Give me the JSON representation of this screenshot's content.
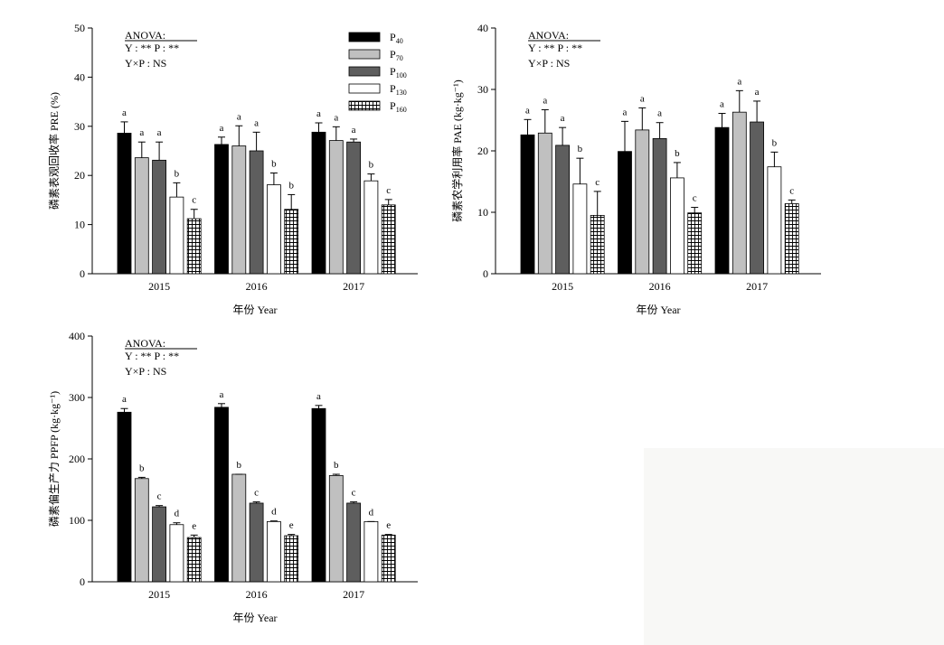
{
  "colors": {
    "P40": "#000000",
    "P70": "#c0c0c0",
    "P100": "#5e5e5e",
    "P130": "#ffffff",
    "P160": "hatch-grid"
  },
  "legend": [
    {
      "base": "P",
      "sub": "40",
      "key": "P40"
    },
    {
      "base": "P",
      "sub": "70",
      "key": "P70"
    },
    {
      "base": "P",
      "sub": "100",
      "key": "P100"
    },
    {
      "base": "P",
      "sub": "130",
      "key": "P130"
    },
    {
      "base": "P",
      "sub": "160",
      "key": "P160"
    }
  ],
  "chart_data": [
    {
      "type": "bar",
      "ylabel": "磷素表观回收率 PRE (%)",
      "xlabel": "年份 Year",
      "categories": [
        "2015",
        "2016",
        "2017"
      ],
      "ylim": [
        0,
        50
      ],
      "yticks": [
        0,
        10,
        20,
        30,
        40,
        50
      ],
      "anova": {
        "title": "ANOVA:",
        "line1": "Y : ** P : **",
        "line2": "Y×P : NS"
      },
      "series": [
        {
          "name": "P40",
          "values": [
            28.6,
            26.3,
            28.8
          ],
          "errors": [
            2.3,
            1.5,
            1.9
          ],
          "letters": [
            "a",
            "a",
            "a"
          ]
        },
        {
          "name": "P70",
          "values": [
            23.6,
            26.0,
            27.1
          ],
          "errors": [
            3.2,
            4.1,
            2.8
          ],
          "letters": [
            "a",
            "a",
            "a"
          ]
        },
        {
          "name": "P100",
          "values": [
            23.1,
            25.0,
            26.8
          ],
          "errors": [
            3.7,
            3.8,
            0.6
          ],
          "letters": [
            "a",
            "a",
            "a"
          ]
        },
        {
          "name": "P130",
          "values": [
            15.6,
            18.1,
            18.9
          ],
          "errors": [
            2.9,
            2.4,
            1.4
          ],
          "letters": [
            "b",
            "b",
            "b"
          ]
        },
        {
          "name": "P160",
          "values": [
            11.2,
            13.1,
            14.0
          ],
          "errors": [
            1.9,
            3.0,
            1.1
          ],
          "letters": [
            "c",
            "b",
            "c"
          ]
        }
      ]
    },
    {
      "type": "bar",
      "ylabel": "磷素农学利用率 PAE (kg·kg⁻¹)",
      "xlabel": "年份 Year",
      "categories": [
        "2015",
        "2016",
        "2017"
      ],
      "ylim": [
        0,
        40
      ],
      "yticks": [
        0,
        10,
        20,
        30,
        40
      ],
      "anova": {
        "title": "ANOVA:",
        "line1": "Y : ** P : **",
        "line2": "Y×P : NS"
      },
      "series": [
        {
          "name": "P40",
          "values": [
            22.6,
            19.9,
            23.8
          ],
          "errors": [
            2.5,
            4.9,
            2.3
          ],
          "letters": [
            "a",
            "a",
            "a"
          ]
        },
        {
          "name": "P70",
          "values": [
            22.9,
            23.4,
            26.3
          ],
          "errors": [
            3.8,
            3.6,
            3.5
          ],
          "letters": [
            "a",
            "a",
            "a"
          ]
        },
        {
          "name": "P100",
          "values": [
            20.9,
            22.0,
            24.7
          ],
          "errors": [
            2.9,
            2.6,
            3.4
          ],
          "letters": [
            "a",
            "a",
            "a"
          ]
        },
        {
          "name": "P130",
          "values": [
            14.6,
            15.6,
            17.4
          ],
          "errors": [
            4.2,
            2.5,
            2.4
          ],
          "letters": [
            "b",
            "b",
            "b"
          ]
        },
        {
          "name": "P160",
          "values": [
            9.5,
            9.9,
            11.4
          ],
          "errors": [
            3.9,
            0.9,
            0.6
          ],
          "letters": [
            "c",
            "c",
            "c"
          ]
        }
      ]
    },
    {
      "type": "bar",
      "ylabel": "磷素偏生产力 PPFP (kg·kg⁻¹)",
      "xlabel": "年份 Year",
      "categories": [
        "2015",
        "2016",
        "2017"
      ],
      "ylim": [
        0,
        400
      ],
      "yticks": [
        0,
        100,
        200,
        300,
        400
      ],
      "anova": {
        "title": "ANOVA:",
        "line1": "Y : ** P : **",
        "line2": "Y×P : NS"
      },
      "series": [
        {
          "name": "P40",
          "values": [
            276,
            284,
            282
          ],
          "errors": [
            6,
            6,
            5
          ],
          "letters": [
            "a",
            "a",
            "a"
          ]
        },
        {
          "name": "P70",
          "values": [
            168,
            175,
            173
          ],
          "errors": [
            2,
            0,
            2
          ],
          "letters": [
            "b",
            "b",
            "b"
          ]
        },
        {
          "name": "P100",
          "values": [
            122,
            128,
            128
          ],
          "errors": [
            2,
            2,
            2
          ],
          "letters": [
            "c",
            "c",
            "c"
          ]
        },
        {
          "name": "P130",
          "values": [
            93,
            98,
            98
          ],
          "errors": [
            3,
            1,
            0
          ],
          "letters": [
            "d",
            "d",
            "d"
          ]
        },
        {
          "name": "P160",
          "values": [
            72,
            75,
            76
          ],
          "errors": [
            4,
            2,
            1
          ],
          "letters": [
            "e",
            "e",
            "e"
          ]
        }
      ]
    }
  ]
}
